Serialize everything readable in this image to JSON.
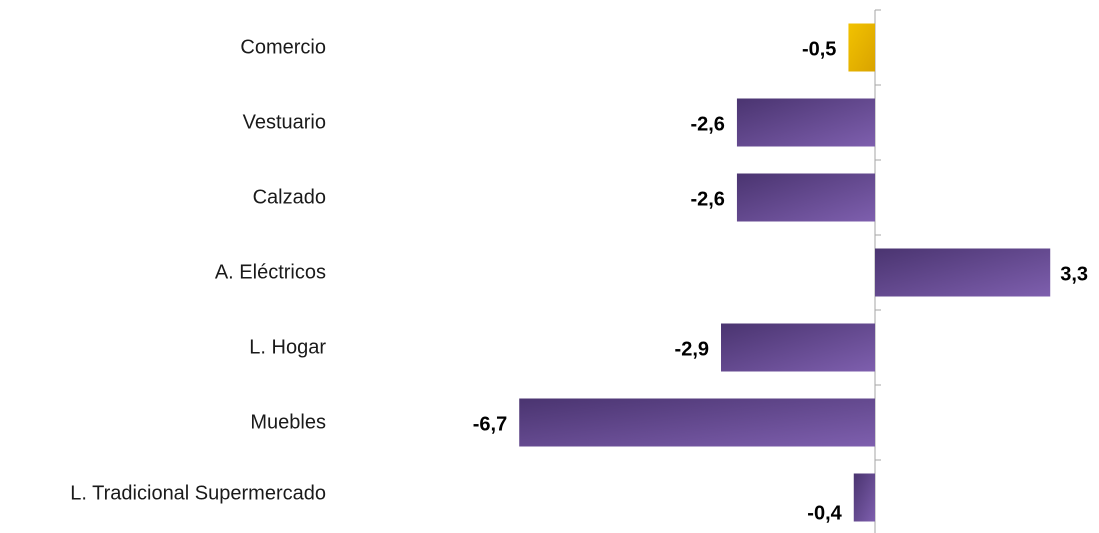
{
  "chart_data": {
    "type": "bar",
    "orientation": "horizontal",
    "categories": [
      "Comercio",
      "Vestuario",
      "Calzado",
      "A. Eléctricos",
      "L. Hogar",
      "Muebles",
      "L. Tradicional Supermercado"
    ],
    "values": [
      -0.5,
      -2.6,
      -2.6,
      3.3,
      -2.9,
      -6.7,
      -0.4
    ],
    "value_labels": [
      "-0,5",
      "-2,6",
      "-2,6",
      "3,3",
      "-2,9",
      "-6,7",
      "-0,4"
    ],
    "title": "",
    "xlabel": "",
    "ylabel": "",
    "xlim": [
      -6.7,
      3.3
    ],
    "grid": false,
    "legend": "none",
    "colors": {
      "highlight": "#e8b400",
      "default_dark": "#4a3470",
      "default_light": "#7e5fae"
    },
    "highlight_index": 0
  }
}
